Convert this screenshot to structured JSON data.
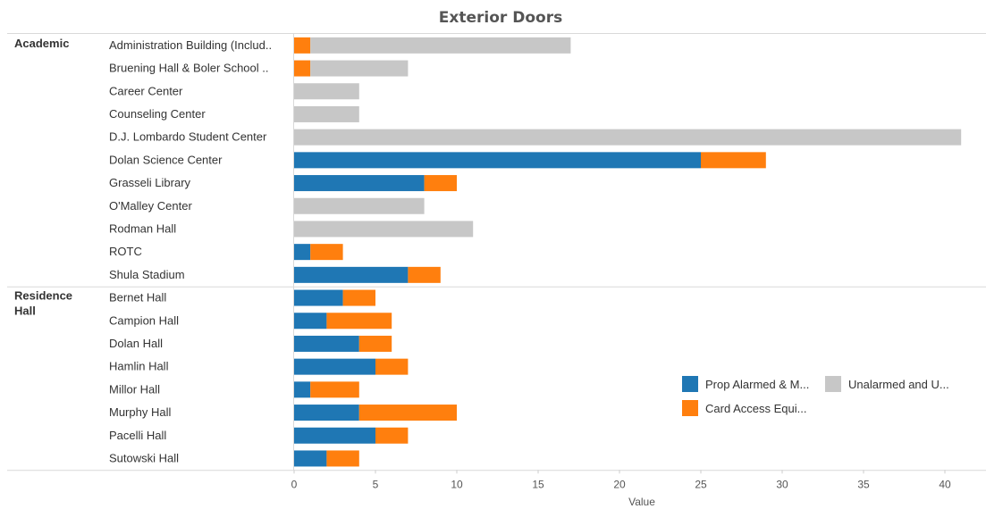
{
  "chart_data": {
    "type": "bar",
    "orientation": "horizontal",
    "stacked": true,
    "title": "Exterior Doors",
    "xlabel": "Value",
    "xlim": [
      0,
      41
    ],
    "xticks": [
      0,
      5,
      10,
      15,
      20,
      25,
      30,
      35,
      40
    ],
    "legend_position": "bottom-right",
    "series": [
      {
        "key": "prop",
        "name": "Prop Alarmed & M...",
        "color": "#1f77b4"
      },
      {
        "key": "card",
        "name": "Card Access Equi...",
        "color": "#ff7f0e"
      },
      {
        "key": "unal",
        "name": "Unalarmed and U...",
        "color": "#c7c7c7"
      }
    ],
    "groups": [
      {
        "name": "Academic",
        "rows": [
          {
            "label": "Administration Building (Includ..",
            "prop": 0,
            "card": 1,
            "unal": 16
          },
          {
            "label": "Bruening Hall & Boler School ..",
            "prop": 0,
            "card": 1,
            "unal": 6
          },
          {
            "label": "Career Center",
            "prop": 0,
            "card": 0,
            "unal": 4
          },
          {
            "label": "Counseling Center",
            "prop": 0,
            "card": 0,
            "unal": 4
          },
          {
            "label": "D.J. Lombardo Student Center",
            "prop": 0,
            "card": 0,
            "unal": 41
          },
          {
            "label": "Dolan Science Center",
            "prop": 25,
            "card": 4,
            "unal": 0
          },
          {
            "label": "Grasseli Library",
            "prop": 8,
            "card": 2,
            "unal": 0
          },
          {
            "label": "O'Malley Center",
            "prop": 0,
            "card": 0,
            "unal": 8
          },
          {
            "label": "Rodman Hall",
            "prop": 0,
            "card": 0,
            "unal": 11
          },
          {
            "label": "ROTC",
            "prop": 1,
            "card": 2,
            "unal": 0
          },
          {
            "label": "Shula Stadium",
            "prop": 7,
            "card": 2,
            "unal": 0
          }
        ]
      },
      {
        "name": "Residence Hall",
        "name_lines": [
          "Residence",
          "Hall"
        ],
        "rows": [
          {
            "label": "Bernet Hall",
            "prop": 3,
            "card": 2,
            "unal": 0
          },
          {
            "label": "Campion Hall",
            "prop": 2,
            "card": 4,
            "unal": 0
          },
          {
            "label": "Dolan Hall",
            "prop": 4,
            "card": 2,
            "unal": 0
          },
          {
            "label": "Hamlin Hall",
            "prop": 5,
            "card": 2,
            "unal": 0
          },
          {
            "label": "Millor Hall",
            "prop": 1,
            "card": 3,
            "unal": 0
          },
          {
            "label": "Murphy Hall",
            "prop": 4,
            "card": 6,
            "unal": 0
          },
          {
            "label": "Pacelli Hall",
            "prop": 5,
            "card": 2,
            "unal": 0
          },
          {
            "label": "Sutowski Hall",
            "prop": 2,
            "card": 2,
            "unal": 0
          }
        ]
      }
    ]
  }
}
